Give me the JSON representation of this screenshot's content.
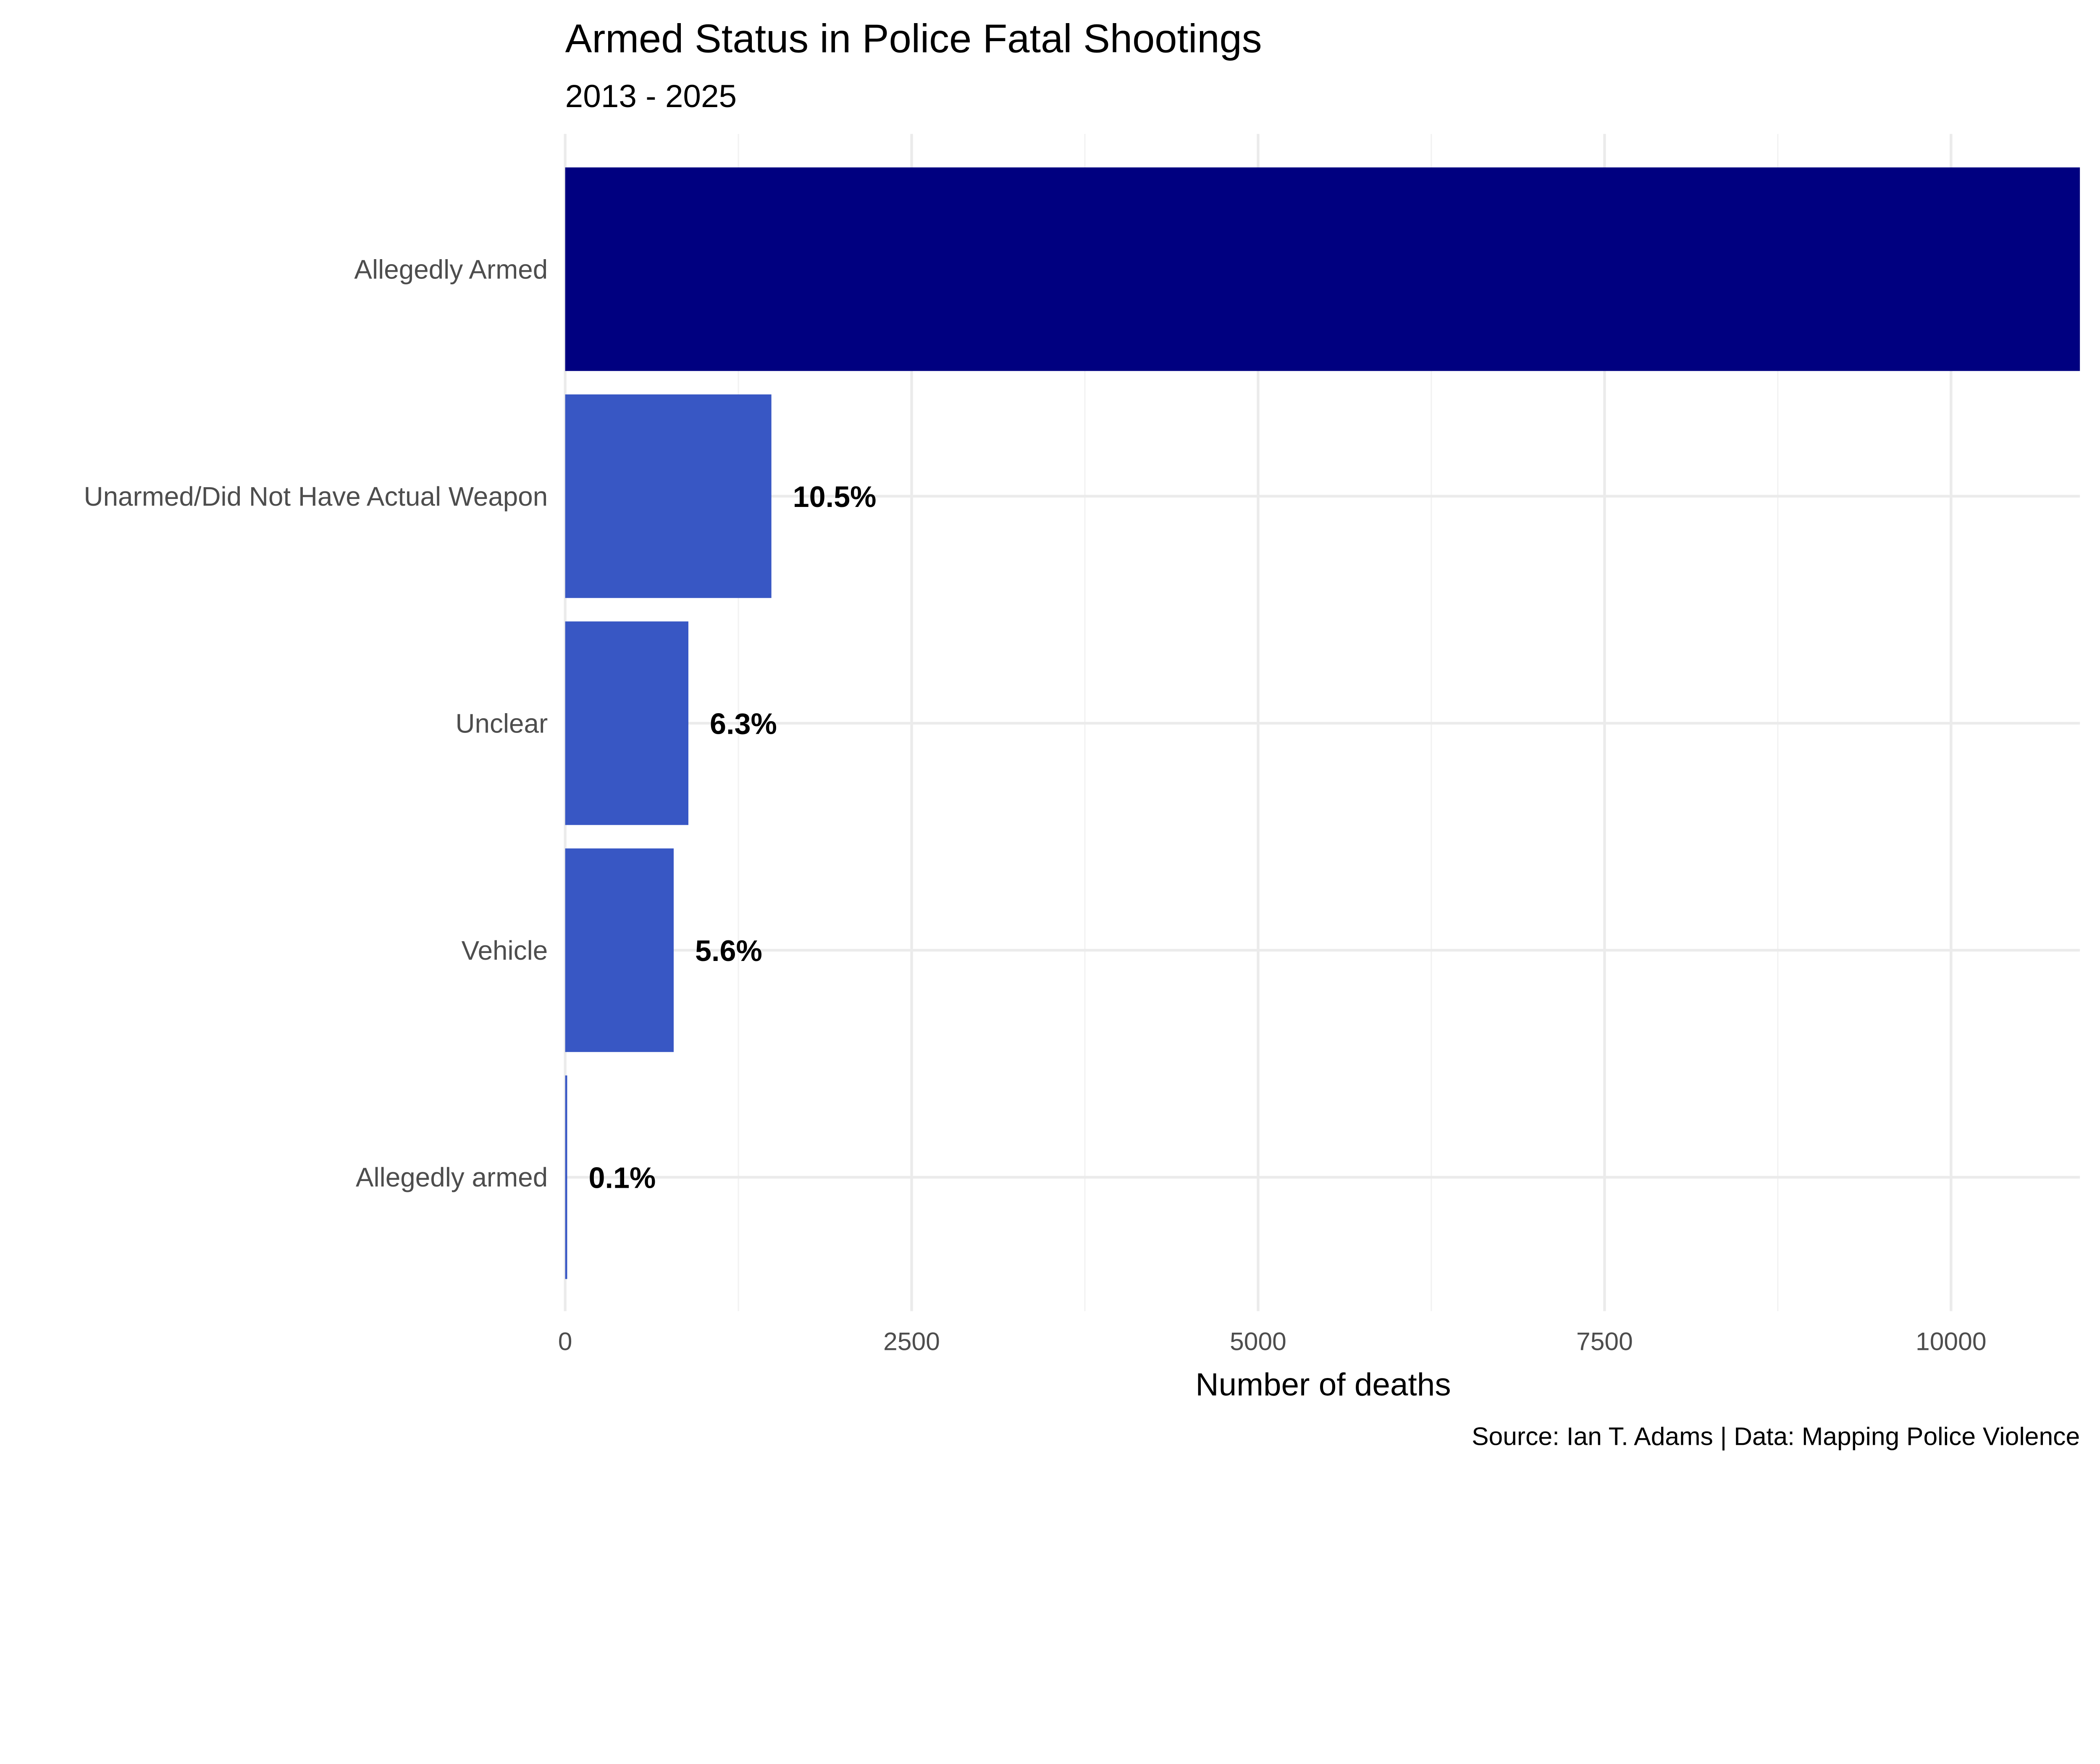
{
  "chart_data": {
    "type": "bar",
    "orientation": "horizontal",
    "title": "Armed Status in Police Fatal Shootings",
    "subtitle": "2013 - 2025",
    "xlabel": "Number of deaths",
    "ylabel": "",
    "caption": "Source: Ian T. Adams | Data: Mapping Police Violence",
    "categories": [
      "Allegedly Armed",
      "Unarmed/Did Not Have Actual Weapon",
      "Unclear",
      "Vehicle",
      "Allegedly armed"
    ],
    "values": [
      10930,
      1488,
      889,
      783,
      14
    ],
    "data_labels": [
      "",
      "10.5%",
      "6.3%",
      "5.6%",
      "0.1%"
    ],
    "bar_colors": [
      "#000080",
      "#3857C4",
      "#3857C4",
      "#3857C4",
      "#3857C4"
    ],
    "xlim": [
      0,
      10930
    ],
    "xticks": [
      0,
      2500,
      5000,
      7500,
      10000
    ],
    "xtick_labels": [
      "0",
      "2500",
      "5000",
      "7500",
      "10000"
    ],
    "grid": true,
    "legend": "none"
  }
}
